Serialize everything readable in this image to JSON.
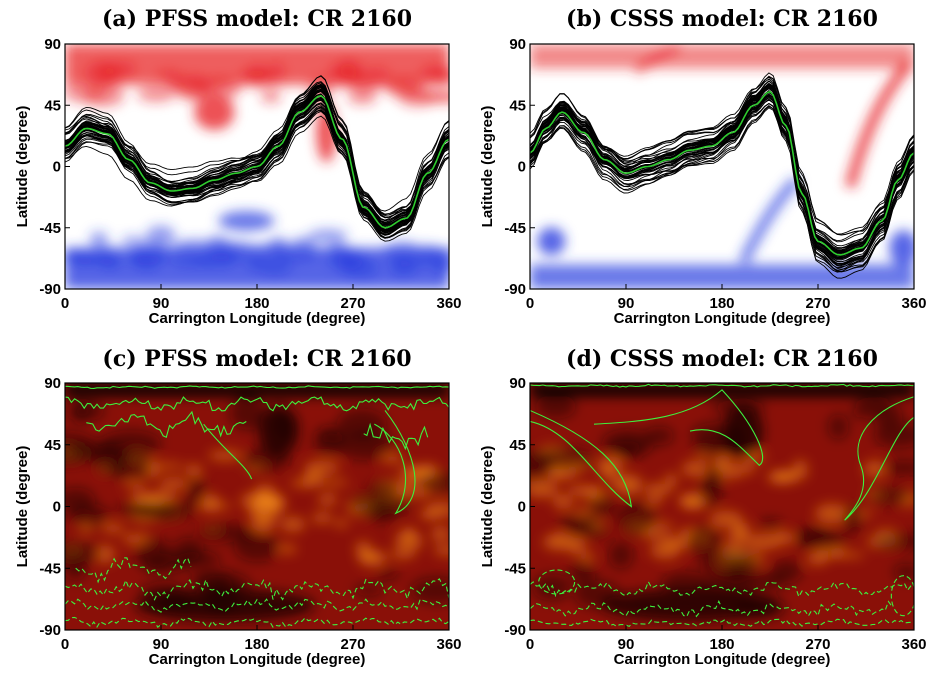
{
  "chart_data": [
    {
      "id": "a",
      "type": "line",
      "title": "(a) PFSS model: CR 2160",
      "xlabel": "Carrington Longitude (degree)",
      "ylabel": "Latitude (degree)",
      "xlim": [
        0,
        360
      ],
      "ylim": [
        -90,
        90
      ],
      "xticks": [
        0,
        90,
        180,
        270,
        360
      ],
      "yticks": [
        90,
        45,
        0,
        -45,
        -90
      ],
      "background": "polarity map (red = positive, blue = negative)",
      "colors": {
        "positive": "#e8262a",
        "negative": "#2a3ee0",
        "ensemble": "#000000",
        "mean": "#2ecc2e"
      },
      "series": [
        {
          "x": [
            0,
            20,
            40,
            60,
            80,
            100,
            120,
            140,
            160,
            180,
            200,
            220,
            240,
            260,
            280,
            300,
            320,
            340,
            360
          ],
          "y": [
            15,
            28,
            24,
            5,
            -12,
            -18,
            -16,
            -10,
            -5,
            0,
            15,
            40,
            52,
            20,
            -30,
            -45,
            -38,
            -5,
            20
          ]
        }
      ]
    },
    {
      "id": "b",
      "type": "line",
      "title": "(b) CSSS model: CR 2160",
      "xlabel": "Carrington Longitude (degree)",
      "ylabel": "Latitude (degree)",
      "xlim": [
        0,
        360
      ],
      "ylim": [
        -90,
        90
      ],
      "xticks": [
        0,
        90,
        180,
        270,
        360
      ],
      "yticks": [
        90,
        45,
        0,
        -45,
        -90
      ],
      "background": "polarity map (red = positive, blue = negative)",
      "colors": {
        "positive": "#e8262a",
        "negative": "#2a3ee0",
        "ensemble": "#000000",
        "mean": "#2ecc2e"
      },
      "series": [
        {
          "x": [
            0,
            15,
            30,
            50,
            70,
            90,
            110,
            130,
            150,
            170,
            190,
            210,
            225,
            240,
            255,
            270,
            290,
            310,
            330,
            345,
            360
          ],
          "y": [
            10,
            28,
            40,
            25,
            5,
            -5,
            0,
            5,
            12,
            15,
            25,
            45,
            55,
            30,
            -20,
            -55,
            -65,
            -60,
            -40,
            -10,
            10
          ]
        }
      ]
    },
    {
      "id": "c",
      "type": "heatmap",
      "title": "(c) PFSS model: CR 2160",
      "xlabel": "Carrington Longitude (degree)",
      "ylabel": "Latitude (degree)",
      "xlim": [
        0,
        360
      ],
      "ylim": [
        -90,
        90
      ],
      "xticks": [
        0,
        90,
        180,
        270,
        360
      ],
      "yticks": [
        90,
        45,
        0,
        -45,
        -90
      ],
      "background": "EUV synoptic map with coronal-hole boundaries",
      "colors": {
        "map_dark": "#1a0000",
        "map_mid": "#8a1008",
        "map_bright": "#ff9a1a",
        "contour": "#3ef03e"
      }
    },
    {
      "id": "d",
      "type": "heatmap",
      "title": "(d) CSSS model: CR 2160",
      "xlabel": "Carrington Longitude (degree)",
      "ylabel": "Latitude (degree)",
      "xlim": [
        0,
        360
      ],
      "ylim": [
        -90,
        90
      ],
      "xticks": [
        0,
        90,
        180,
        270,
        360
      ],
      "yticks": [
        90,
        45,
        0,
        -45,
        -90
      ],
      "background": "EUV synoptic map with coronal-hole boundaries",
      "colors": {
        "map_dark": "#1a0000",
        "map_mid": "#8a1008",
        "map_bright": "#ff9a1a",
        "contour": "#3ef03e"
      }
    }
  ]
}
